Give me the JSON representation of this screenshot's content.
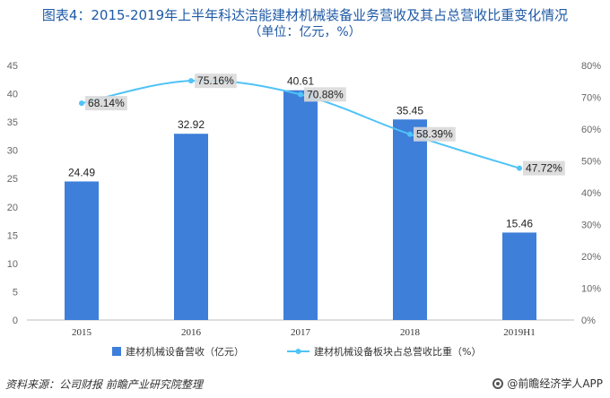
{
  "header": {
    "title_line1": "图表4：2015-2019年上半年科达洁能建材机械装备业务营收及其占总营收比重变化情况",
    "title_line2": "（单位：亿元，%）"
  },
  "chart_data": {
    "type": "bar",
    "categories": [
      "2015",
      "2016",
      "2017",
      "2018",
      "2019H1"
    ],
    "series": [
      {
        "name": "建材机械设备营收（亿元）",
        "type": "bar",
        "axis": "left",
        "color": "#3d7fd9",
        "values": [
          24.49,
          32.92,
          40.61,
          35.45,
          15.46
        ],
        "labels": [
          "24.49",
          "32.92",
          "40.61",
          "35.45",
          "15.46"
        ]
      },
      {
        "name": "建材机械设备板块占总营收比重（%）",
        "type": "line",
        "axis": "right",
        "color": "#4fc3f7",
        "values": [
          68.14,
          75.16,
          70.88,
          58.39,
          47.72
        ],
        "labels": [
          "68.14%",
          "75.16%",
          "70.88%",
          "58.39%",
          "47.72%"
        ]
      }
    ],
    "y_left": {
      "min": 0,
      "max": 45,
      "ticks": [
        "0",
        "5",
        "10",
        "15",
        "20",
        "25",
        "30",
        "35",
        "40",
        "45"
      ]
    },
    "y_right": {
      "min": 0,
      "max": 80,
      "ticks": [
        "0%",
        "10%",
        "20%",
        "30%",
        "40%",
        "50%",
        "60%",
        "70%",
        "80%"
      ]
    },
    "legend_position": "bottom"
  },
  "footer": {
    "source": "资料来源：公司财报  前瞻产业研究院整理",
    "brand": "@前瞻经济学人APP"
  }
}
